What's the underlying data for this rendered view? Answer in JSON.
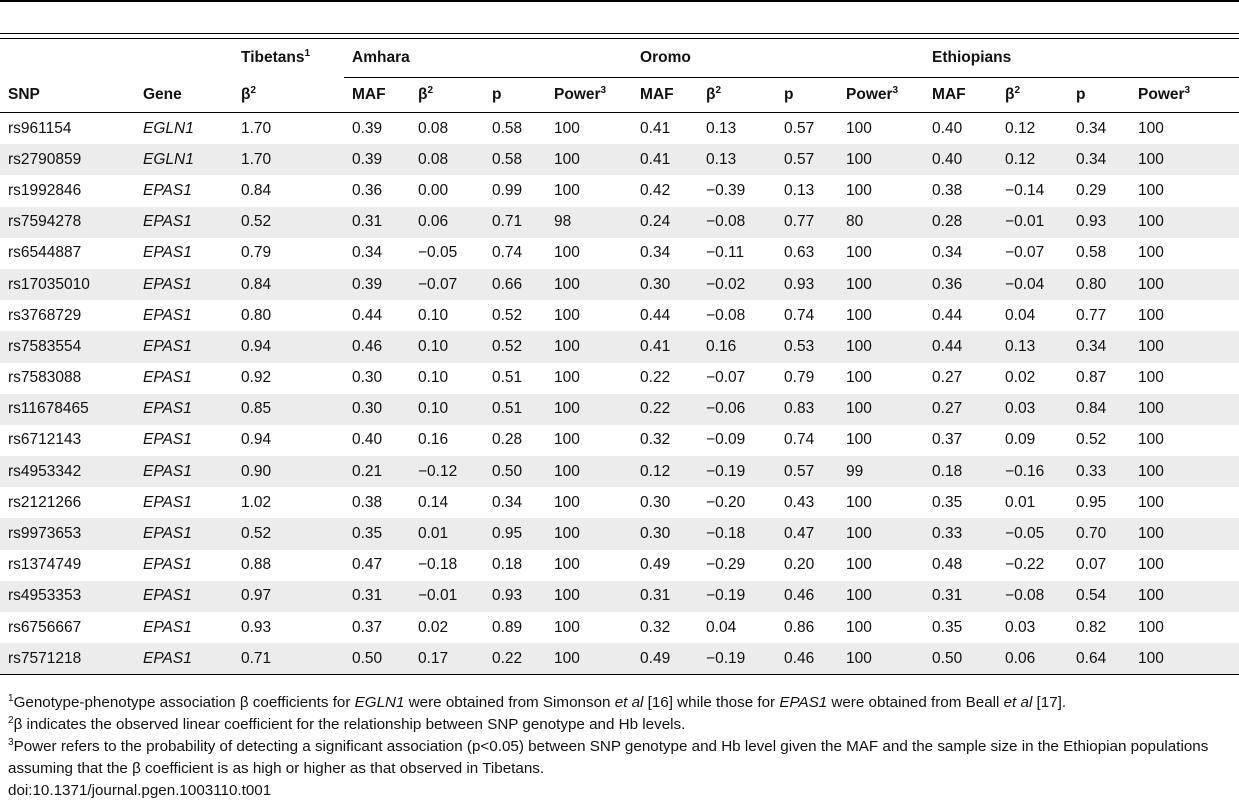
{
  "group_headers": {
    "tibetans": "Tibetans",
    "tibetans_sup": "1",
    "amhara": "Amhara",
    "oromo": "Oromo",
    "ethiopians": "Ethiopians"
  },
  "columns": {
    "snp": "SNP",
    "gene": "Gene",
    "beta": "β",
    "beta_sup": "2",
    "maf": "MAF",
    "p": "p",
    "power": "Power",
    "power_sup": "3"
  },
  "rows": [
    {
      "snp": "rs961154",
      "gene": "EGLN1",
      "tib": "1.70",
      "a_maf": "0.39",
      "a_b": "0.08",
      "a_p": "0.58",
      "a_pw": "100",
      "o_maf": "0.41",
      "o_b": "0.13",
      "o_p": "0.57",
      "o_pw": "100",
      "e_maf": "0.40",
      "e_b": "0.12",
      "e_p": "0.34",
      "e_pw": "100"
    },
    {
      "snp": "rs2790859",
      "gene": "EGLN1",
      "tib": "1.70",
      "a_maf": "0.39",
      "a_b": "0.08",
      "a_p": "0.58",
      "a_pw": "100",
      "o_maf": "0.41",
      "o_b": "0.13",
      "o_p": "0.57",
      "o_pw": "100",
      "e_maf": "0.40",
      "e_b": "0.12",
      "e_p": "0.34",
      "e_pw": "100"
    },
    {
      "snp": "rs1992846",
      "gene": "EPAS1",
      "tib": "0.84",
      "a_maf": "0.36",
      "a_b": "0.00",
      "a_p": "0.99",
      "a_pw": "100",
      "o_maf": "0.42",
      "o_b": "−0.39",
      "o_p": "0.13",
      "o_pw": "100",
      "e_maf": "0.38",
      "e_b": "−0.14",
      "e_p": "0.29",
      "e_pw": "100"
    },
    {
      "snp": "rs7594278",
      "gene": "EPAS1",
      "tib": "0.52",
      "a_maf": "0.31",
      "a_b": "0.06",
      "a_p": "0.71",
      "a_pw": "98",
      "o_maf": "0.24",
      "o_b": "−0.08",
      "o_p": "0.77",
      "o_pw": "80",
      "e_maf": "0.28",
      "e_b": "−0.01",
      "e_p": "0.93",
      "e_pw": "100"
    },
    {
      "snp": "rs6544887",
      "gene": "EPAS1",
      "tib": "0.79",
      "a_maf": "0.34",
      "a_b": "−0.05",
      "a_p": "0.74",
      "a_pw": "100",
      "o_maf": "0.34",
      "o_b": "−0.11",
      "o_p": "0.63",
      "o_pw": "100",
      "e_maf": "0.34",
      "e_b": "−0.07",
      "e_p": "0.58",
      "e_pw": "100"
    },
    {
      "snp": "rs17035010",
      "gene": "EPAS1",
      "tib": "0.84",
      "a_maf": "0.39",
      "a_b": "−0.07",
      "a_p": "0.66",
      "a_pw": "100",
      "o_maf": "0.30",
      "o_b": "−0.02",
      "o_p": "0.93",
      "o_pw": "100",
      "e_maf": "0.36",
      "e_b": "−0.04",
      "e_p": "0.80",
      "e_pw": "100"
    },
    {
      "snp": "rs3768729",
      "gene": "EPAS1",
      "tib": "0.80",
      "a_maf": "0.44",
      "a_b": "0.10",
      "a_p": "0.52",
      "a_pw": "100",
      "o_maf": "0.44",
      "o_b": "−0.08",
      "o_p": "0.74",
      "o_pw": "100",
      "e_maf": "0.44",
      "e_b": "0.04",
      "e_p": "0.77",
      "e_pw": "100"
    },
    {
      "snp": "rs7583554",
      "gene": "EPAS1",
      "tib": "0.94",
      "a_maf": "0.46",
      "a_b": "0.10",
      "a_p": "0.52",
      "a_pw": "100",
      "o_maf": "0.41",
      "o_b": "0.16",
      "o_p": "0.53",
      "o_pw": "100",
      "e_maf": "0.44",
      "e_b": "0.13",
      "e_p": "0.34",
      "e_pw": "100"
    },
    {
      "snp": "rs7583088",
      "gene": "EPAS1",
      "tib": "0.92",
      "a_maf": "0.30",
      "a_b": "0.10",
      "a_p": "0.51",
      "a_pw": "100",
      "o_maf": "0.22",
      "o_b": "−0.07",
      "o_p": "0.79",
      "o_pw": "100",
      "e_maf": "0.27",
      "e_b": "0.02",
      "e_p": "0.87",
      "e_pw": "100"
    },
    {
      "snp": "rs11678465",
      "gene": "EPAS1",
      "tib": "0.85",
      "a_maf": "0.30",
      "a_b": "0.10",
      "a_p": "0.51",
      "a_pw": "100",
      "o_maf": "0.22",
      "o_b": "−0.06",
      "o_p": "0.83",
      "o_pw": "100",
      "e_maf": "0.27",
      "e_b": "0.03",
      "e_p": "0.84",
      "e_pw": "100"
    },
    {
      "snp": "rs6712143",
      "gene": "EPAS1",
      "tib": "0.94",
      "a_maf": "0.40",
      "a_b": "0.16",
      "a_p": "0.28",
      "a_pw": "100",
      "o_maf": "0.32",
      "o_b": "−0.09",
      "o_p": "0.74",
      "o_pw": "100",
      "e_maf": "0.37",
      "e_b": "0.09",
      "e_p": "0.52",
      "e_pw": "100"
    },
    {
      "snp": "rs4953342",
      "gene": "EPAS1",
      "tib": "0.90",
      "a_maf": "0.21",
      "a_b": "−0.12",
      "a_p": "0.50",
      "a_pw": "100",
      "o_maf": "0.12",
      "o_b": "−0.19",
      "o_p": "0.57",
      "o_pw": "99",
      "e_maf": "0.18",
      "e_b": "−0.16",
      "e_p": "0.33",
      "e_pw": "100"
    },
    {
      "snp": "rs2121266",
      "gene": "EPAS1",
      "tib": "1.02",
      "a_maf": "0.38",
      "a_b": "0.14",
      "a_p": "0.34",
      "a_pw": "100",
      "o_maf": "0.30",
      "o_b": "−0.20",
      "o_p": "0.43",
      "o_pw": "100",
      "e_maf": "0.35",
      "e_b": "0.01",
      "e_p": "0.95",
      "e_pw": "100"
    },
    {
      "snp": "rs9973653",
      "gene": "EPAS1",
      "tib": "0.52",
      "a_maf": "0.35",
      "a_b": "0.01",
      "a_p": "0.95",
      "a_pw": "100",
      "o_maf": "0.30",
      "o_b": "−0.18",
      "o_p": "0.47",
      "o_pw": "100",
      "e_maf": "0.33",
      "e_b": "−0.05",
      "e_p": "0.70",
      "e_pw": "100"
    },
    {
      "snp": "rs1374749",
      "gene": "EPAS1",
      "tib": "0.88",
      "a_maf": "0.47",
      "a_b": "−0.18",
      "a_p": "0.18",
      "a_pw": "100",
      "o_maf": "0.49",
      "o_b": "−0.29",
      "o_p": "0.20",
      "o_pw": "100",
      "e_maf": "0.48",
      "e_b": "−0.22",
      "e_p": "0.07",
      "e_pw": "100"
    },
    {
      "snp": "rs4953353",
      "gene": "EPAS1",
      "tib": "0.97",
      "a_maf": "0.31",
      "a_b": "−0.01",
      "a_p": "0.93",
      "a_pw": "100",
      "o_maf": "0.31",
      "o_b": "−0.19",
      "o_p": "0.46",
      "o_pw": "100",
      "e_maf": "0.31",
      "e_b": "−0.08",
      "e_p": "0.54",
      "e_pw": "100"
    },
    {
      "snp": "rs6756667",
      "gene": "EPAS1",
      "tib": "0.93",
      "a_maf": "0.37",
      "a_b": "0.02",
      "a_p": "0.89",
      "a_pw": "100",
      "o_maf": "0.32",
      "o_b": "0.04",
      "o_p": "0.86",
      "o_pw": "100",
      "e_maf": "0.35",
      "e_b": "0.03",
      "e_p": "0.82",
      "e_pw": "100"
    },
    {
      "snp": "rs7571218",
      "gene": "EPAS1",
      "tib": "0.71",
      "a_maf": "0.50",
      "a_b": "0.17",
      "a_p": "0.22",
      "a_pw": "100",
      "o_maf": "0.49",
      "o_b": "−0.19",
      "o_p": "0.46",
      "o_pw": "100",
      "e_maf": "0.50",
      "e_b": "0.06",
      "e_p": "0.64",
      "e_pw": "100"
    }
  ],
  "footnotes": {
    "n1": {
      "mark": "1",
      "t1": "Genotype-phenotype association β coefficients for ",
      "i1": "EGLN1",
      "t2": " were obtained from Simonson ",
      "i2": "et al",
      "t3": " [16] while those for ",
      "i3": "EPAS1",
      "t4": " were obtained from Beall ",
      "i4": "et al",
      "t5": " [17]."
    },
    "n2": {
      "mark": "2",
      "text": "β indicates the observed linear coefficient for the relationship between SNP genotype and Hb levels."
    },
    "n3": {
      "mark": "3",
      "text": "Power refers to the probability of detecting a significant association (p<0.05) between SNP genotype and Hb level given the MAF and the sample size in the Ethiopian populations assuming that the β coefficient is as high or higher as that observed in Tibetans."
    },
    "doi": "doi:10.1371/journal.pgen.1003110.t001"
  }
}
